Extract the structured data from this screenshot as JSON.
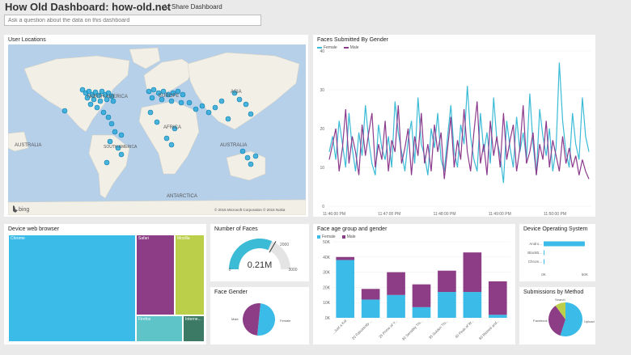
{
  "header": {
    "title": "How Old Dashboard: how-old.net",
    "share_label": "Share Dashboard",
    "qa_placeholder": "Ask a question about the data on this dashboard"
  },
  "map_tile": {
    "title": "User Locations",
    "labels": {
      "north_america": "NORTH AMERICA",
      "europe": "EUROPE",
      "asia": "ASIA",
      "africa": "AFRICA",
      "south_america": "SOUTH AMERICA",
      "australia_left": "AUSTRALIA",
      "australia_right": "AUSTRALIA",
      "antarctica": "ANTARCTICA"
    },
    "logo": "bing",
    "copyright": "© 2015 Microsoft Corporation   © 2015 Nokia"
  },
  "line_tile": {
    "title": "Faces Submitted By Gender",
    "chart_data": {
      "type": "line",
      "x_ticks": [
        "11:46:00 PM",
        "11:47:00 PM",
        "11:48:00 PM",
        "11:49:00 PM",
        "11:50:00 PM"
      ],
      "y_ticks": [
        0,
        10,
        20,
        30,
        40
      ],
      "ylim": [
        0,
        40
      ],
      "series": [
        {
          "name": "Female",
          "color": "#3bbbd6",
          "values": [
            14,
            18,
            12,
            22,
            16,
            10,
            24,
            15,
            9,
            19,
            13,
            26,
            17,
            11,
            8,
            21,
            15,
            12,
            18,
            10,
            27,
            19,
            14,
            9,
            17,
            22,
            11,
            28,
            16,
            13,
            8,
            20,
            15,
            24,
            12,
            9,
            18,
            26,
            14,
            10,
            21,
            16,
            31,
            18,
            12,
            9,
            24,
            14,
            19,
            11,
            28,
            17,
            13,
            6,
            22,
            15,
            10,
            23,
            14,
            19,
            12,
            29,
            16,
            8,
            25,
            18,
            13,
            20,
            9,
            15,
            37,
            22,
            14,
            10,
            24,
            16,
            12,
            28,
            18,
            14
          ]
        },
        {
          "name": "Male",
          "color": "#8c3a8c",
          "values": [
            12,
            16,
            20,
            9,
            15,
            25,
            11,
            18,
            14,
            8,
            21,
            13,
            19,
            24,
            10,
            16,
            12,
            22,
            9,
            17,
            14,
            26,
            11,
            15,
            20,
            8,
            18,
            13,
            24,
            11,
            16,
            9,
            21,
            14,
            19,
            7,
            15,
            23,
            10,
            17,
            12,
            25,
            14,
            9,
            19,
            27,
            11,
            16,
            8,
            22,
            13,
            18,
            10,
            24,
            12,
            17,
            21,
            9,
            15,
            26,
            11,
            14,
            19,
            8,
            16,
            12,
            22,
            10,
            17,
            13,
            9,
            18,
            11,
            15,
            10,
            13,
            8,
            12,
            9,
            7
          ]
        }
      ]
    }
  },
  "treemap_tile": {
    "title": "Device web browser",
    "chart_data": {
      "type": "treemap",
      "items": [
        {
          "label": "Chrome",
          "color": "#3bbbe8"
        },
        {
          "label": "Safari",
          "color": "#8c3d86"
        },
        {
          "label": "Mozilla",
          "color": "#bccf4b"
        },
        {
          "label": "Firefox",
          "color": "#5fc4c8"
        },
        {
          "label": "Interne...",
          "color": "#3d7a66"
        }
      ]
    }
  },
  "gauge_tile": {
    "title": "Number of Faces",
    "value": "0.21M",
    "fraction": 0.63,
    "min": "0",
    "target": "2000",
    "max": "3000",
    "color": "#3bbbd6"
  },
  "gender_tile": {
    "title": "Face Gender",
    "chart_data": {
      "type": "pie",
      "slices": [
        {
          "label": "Female",
          "value": 50,
          "color": "#3bbbe8"
        },
        {
          "label": "Male",
          "value": 50,
          "color": "#8c3d86"
        }
      ]
    }
  },
  "age_tile": {
    "title": "Face age group and gender",
    "chart_data": {
      "type": "bar",
      "stacked": true,
      "categories": [
        "...Just a Kid",
        "20 Fabulously ...",
        "25 Prime of Y...",
        "30 Sensibly Thi...",
        "35 Golden Thi...",
        "40 Peak of W...",
        "60 Retired and..."
      ],
      "y_ticks": [
        "0K",
        "10K",
        "20K",
        "30K",
        "40K",
        "50K"
      ],
      "ylim": [
        0,
        50
      ],
      "series": [
        {
          "name": "Female",
          "color": "#3bbbe8",
          "values": [
            38,
            12,
            15,
            7,
            17,
            17,
            2
          ]
        },
        {
          "name": "Male",
          "color": "#8c3d86",
          "values": [
            2,
            7,
            15,
            15,
            14,
            26,
            22
          ]
        }
      ]
    }
  },
  "os_tile": {
    "title": "Device Operating System",
    "chart_data": {
      "type": "bar",
      "orientation": "horizontal",
      "categories": [
        "Andro...",
        "BlackB...",
        "Chrom..."
      ],
      "values": [
        50,
        0.4,
        0.2
      ],
      "x_ticks": [
        "0K",
        "50K"
      ],
      "xlim": [
        0,
        55
      ],
      "color": "#3bbbe8"
    }
  },
  "method_tile": {
    "title": "Submissions by Method",
    "chart_data": {
      "type": "pie",
      "slices": [
        {
          "label": "Upload",
          "value": 55,
          "color": "#3bbbe8"
        },
        {
          "label": "Facebook",
          "value": 35,
          "color": "#8c3d86"
        },
        {
          "label": "Search",
          "value": 10,
          "color": "#bccf4b"
        }
      ]
    }
  }
}
